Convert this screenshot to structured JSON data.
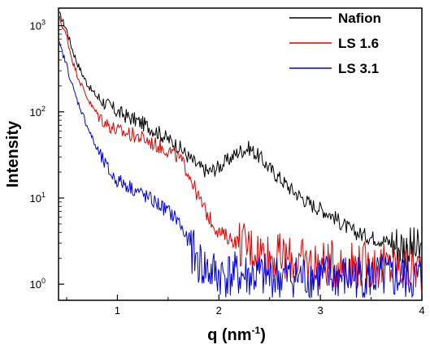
{
  "chart_data": {
    "type": "line",
    "title": "",
    "xlabel": "q (nm",
    "xlabel_sup": "-1",
    "xlabel_close": ")",
    "ylabel": "Intensity",
    "xlim": [
      0.42,
      4.0
    ],
    "ylim": [
      0.65,
      1600
    ],
    "yscale": "log",
    "grid": false,
    "legend_position": "top-right",
    "x_ticks": [
      "1",
      "2",
      "3",
      "4"
    ],
    "y_ticks": [
      {
        "base": "10",
        "exp": "0"
      },
      {
        "base": "10",
        "exp": "1"
      },
      {
        "base": "10",
        "exp": "2"
      },
      {
        "base": "10",
        "exp": "3"
      }
    ],
    "series": [
      {
        "name": "Nafion",
        "color": "#000000",
        "points": [
          [
            0.43,
            1350
          ],
          [
            0.5,
            900
          ],
          [
            0.55,
            560
          ],
          [
            0.6,
            380
          ],
          [
            0.65,
            280
          ],
          [
            0.7,
            215
          ],
          [
            0.75,
            175
          ],
          [
            0.8,
            150
          ],
          [
            0.85,
            135
          ],
          [
            0.9,
            120
          ],
          [
            0.95,
            110
          ],
          [
            1.0,
            100
          ],
          [
            1.1,
            88
          ],
          [
            1.2,
            78
          ],
          [
            1.3,
            68
          ],
          [
            1.4,
            58
          ],
          [
            1.5,
            48
          ],
          [
            1.6,
            40
          ],
          [
            1.7,
            30
          ],
          [
            1.8,
            23
          ],
          [
            1.9,
            20
          ],
          [
            2.0,
            23
          ],
          [
            2.1,
            28
          ],
          [
            2.2,
            35
          ],
          [
            2.3,
            38
          ],
          [
            2.4,
            30
          ],
          [
            2.5,
            22
          ],
          [
            2.6,
            17
          ],
          [
            2.7,
            13
          ],
          [
            2.8,
            10.5
          ],
          [
            2.9,
            8.5
          ],
          [
            3.0,
            7.5
          ],
          [
            3.1,
            6.5
          ],
          [
            3.2,
            5.2
          ],
          [
            3.3,
            4.2
          ],
          [
            3.4,
            3.8
          ],
          [
            3.5,
            3.5
          ],
          [
            3.6,
            3.3
          ],
          [
            3.7,
            3.0
          ],
          [
            3.8,
            2.8
          ],
          [
            3.9,
            2.5
          ],
          [
            4.0,
            2.3
          ]
        ]
      },
      {
        "name": "LS 1.6",
        "color": "#e00000",
        "points": [
          [
            0.43,
            1200
          ],
          [
            0.5,
            750
          ],
          [
            0.55,
            420
          ],
          [
            0.6,
            280
          ],
          [
            0.65,
            200
          ],
          [
            0.7,
            150
          ],
          [
            0.75,
            115
          ],
          [
            0.8,
            95
          ],
          [
            0.85,
            82
          ],
          [
            0.9,
            72
          ],
          [
            0.95,
            66
          ],
          [
            1.0,
            60
          ],
          [
            1.1,
            56
          ],
          [
            1.2,
            52
          ],
          [
            1.3,
            46
          ],
          [
            1.4,
            40
          ],
          [
            1.5,
            36
          ],
          [
            1.6,
            30
          ],
          [
            1.7,
            20
          ],
          [
            1.8,
            10
          ],
          [
            1.9,
            6
          ],
          [
            2.0,
            4
          ],
          [
            2.2,
            3
          ],
          [
            2.5,
            2.2
          ],
          [
            2.8,
            1.8
          ],
          [
            3.0,
            1.7
          ],
          [
            3.3,
            1.7
          ],
          [
            3.6,
            1.6
          ],
          [
            4.0,
            1.5
          ]
        ]
      },
      {
        "name": "LS 3.1",
        "color": "#0000e0",
        "points": [
          [
            0.43,
            600
          ],
          [
            0.5,
            350
          ],
          [
            0.55,
            210
          ],
          [
            0.6,
            140
          ],
          [
            0.65,
            100
          ],
          [
            0.7,
            70
          ],
          [
            0.75,
            50
          ],
          [
            0.8,
            36
          ],
          [
            0.85,
            28
          ],
          [
            0.9,
            22
          ],
          [
            0.95,
            18
          ],
          [
            1.0,
            16
          ],
          [
            1.1,
            14
          ],
          [
            1.2,
            12
          ],
          [
            1.3,
            10
          ],
          [
            1.4,
            8.5
          ],
          [
            1.5,
            7
          ],
          [
            1.6,
            5.5
          ],
          [
            1.7,
            3
          ],
          [
            1.8,
            1.8
          ],
          [
            1.9,
            1.4
          ],
          [
            2.0,
            1.3
          ],
          [
            2.5,
            1.2
          ],
          [
            3.0,
            1.2
          ],
          [
            3.5,
            1.2
          ],
          [
            4.0,
            1.15
          ]
        ]
      }
    ]
  }
}
